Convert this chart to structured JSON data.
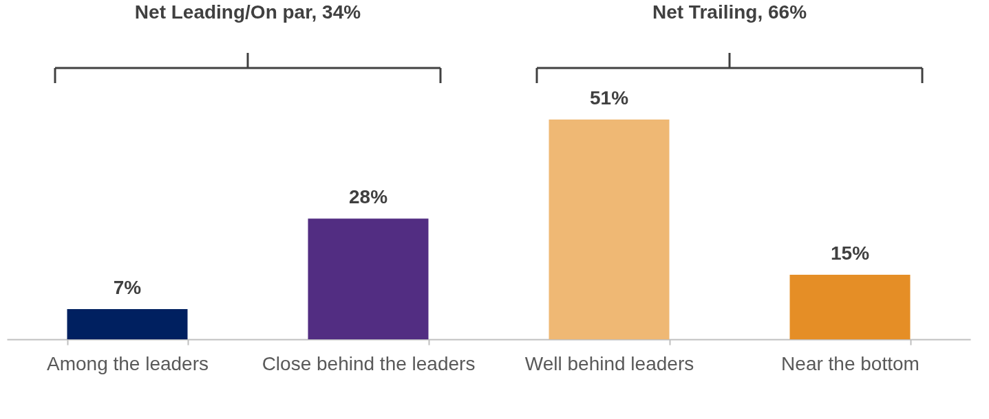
{
  "chart_data": {
    "type": "bar",
    "categories": [
      "Among the leaders",
      "Close behind the leaders",
      "Well behind leaders",
      "Near the bottom"
    ],
    "values": [
      7,
      28,
      51,
      15
    ],
    "colors": [
      "#002060",
      "#522d82",
      "#efb874",
      "#e58e26"
    ],
    "value_labels": [
      "7%",
      "28%",
      "51%",
      "15%"
    ],
    "annotations": [
      "Net Leading/On par, 34%",
      "Net Trailing, 66%"
    ]
  }
}
